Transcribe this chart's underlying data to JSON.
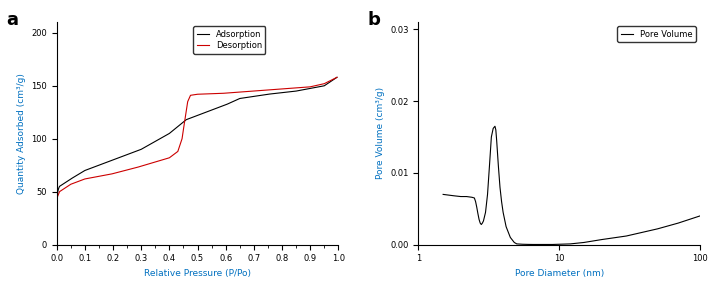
{
  "panel_a_label": "a",
  "panel_b_label": "b",
  "xlabel_a": "Relative Pressure (P/Po)",
  "ylabel_a": "Quantity Adsorbed (cm³/g)",
  "xlabel_b": "Pore Diameter (nm)",
  "ylabel_b": "Pore Volume (cm³/g)",
  "legend_a": [
    "Adsorption",
    "Desorption"
  ],
  "legend_b": [
    "Pore Volume"
  ],
  "adsorption_color": "#000000",
  "desorption_color": "#cc0000",
  "pore_color": "#000000",
  "ylim_a": [
    0,
    210
  ],
  "xlim_a": [
    0.0,
    1.0
  ],
  "ylim_b": [
    0.0,
    0.031
  ],
  "xlim_b": [
    1,
    100
  ],
  "yticks_a": [
    0,
    50,
    100,
    150,
    200
  ],
  "yticks_b": [
    0.0,
    0.01,
    0.02,
    0.03
  ],
  "label_color": "#C8A000",
  "xlabel_color": "#0070C0",
  "ylabel_color": "#0070C0",
  "tick_label_color": "#000000",
  "legend_text_color": "#000000",
  "background_color": "#ffffff"
}
